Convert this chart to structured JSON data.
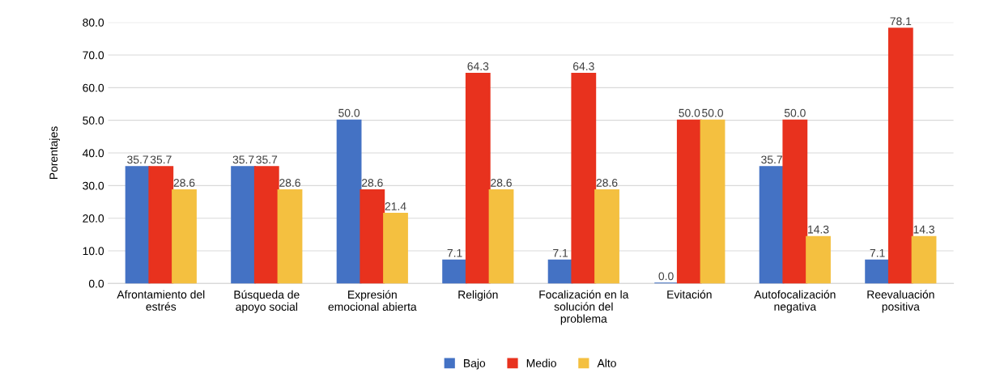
{
  "chart_data": {
    "type": "bar",
    "ylabel": "Porentajes",
    "categories": [
      "Afrontamiento del\nestrés",
      "Búsqueda de\napoyo social",
      "Expresión\nemocional abierta",
      "Religión",
      "Focalización en la\nsolución del\nproblema",
      "Evitación",
      "Autofocalización\nnegativa",
      "Reevaluación\npositiva"
    ],
    "series": [
      {
        "name": "Bajo",
        "color": "#4472c4",
        "values": [
          35.7,
          35.7,
          50.0,
          7.1,
          7.1,
          0.0,
          35.7,
          7.1
        ],
        "value_labels": [
          "35.7",
          "35.7",
          "50.0",
          "7.1",
          "7.1",
          "0.0",
          "35.7",
          "7.1"
        ]
      },
      {
        "name": "Medio",
        "color": "#e8321e",
        "values": [
          35.7,
          35.7,
          28.6,
          64.3,
          64.3,
          50.0,
          50.0,
          78.1
        ],
        "value_labels": [
          "35.7",
          "35.7",
          "28.6",
          "64.3",
          "64.3",
          "50.0",
          "50.0",
          "78.1"
        ]
      },
      {
        "name": "Alto",
        "color": "#f4c040",
        "values": [
          28.6,
          28.6,
          21.4,
          28.6,
          28.6,
          50.0,
          14.3,
          14.3
        ],
        "value_labels": [
          "28.6",
          "28.6",
          "21.4",
          "28.6",
          "28.6",
          "50.0",
          "14.3",
          "14.3"
        ]
      }
    ],
    "ylim": [
      0,
      80
    ],
    "yticks": [
      {
        "value": 0,
        "label": "0.0"
      },
      {
        "value": 10,
        "label": "10.0"
      },
      {
        "value": 20,
        "label": "20.0"
      },
      {
        "value": 30,
        "label": "30.0"
      },
      {
        "value": 40,
        "label": "40.0"
      },
      {
        "value": 50,
        "label": "50.0"
      },
      {
        "value": 60,
        "label": "60.0"
      },
      {
        "value": 70,
        "label": "70.0"
      },
      {
        "value": 80,
        "label": "80.0"
      }
    ],
    "grid": "y",
    "legend": "bottom"
  }
}
